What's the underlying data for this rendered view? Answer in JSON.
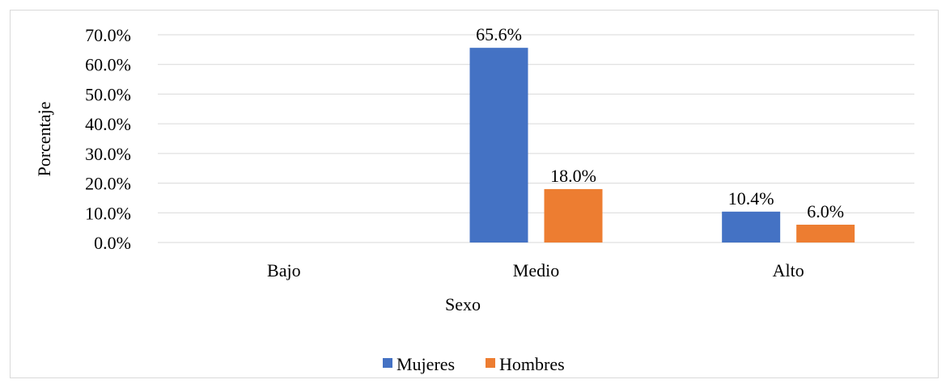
{
  "chart_data": {
    "type": "bar",
    "title": "",
    "xlabel": "Sexo",
    "ylabel": "Porcentaje",
    "ylim": [
      0,
      70
    ],
    "yticks": [
      "0.0%",
      "10.0%",
      "20.0%",
      "30.0%",
      "40.0%",
      "50.0%",
      "60.0%",
      "70.0%"
    ],
    "categories": [
      "Bajo",
      "Medio",
      "Alto"
    ],
    "series": [
      {
        "name": "Mujeres",
        "color": "#4472c4",
        "values": [
          null,
          65.6,
          10.4
        ],
        "labels": [
          "",
          "65.6%",
          "10.4%"
        ]
      },
      {
        "name": "Hombres",
        "color": "#ed7d31",
        "values": [
          null,
          18.0,
          6.0
        ],
        "labels": [
          "",
          "18.0%",
          "6.0%"
        ]
      }
    ],
    "grid": true,
    "legend": "bottom"
  }
}
